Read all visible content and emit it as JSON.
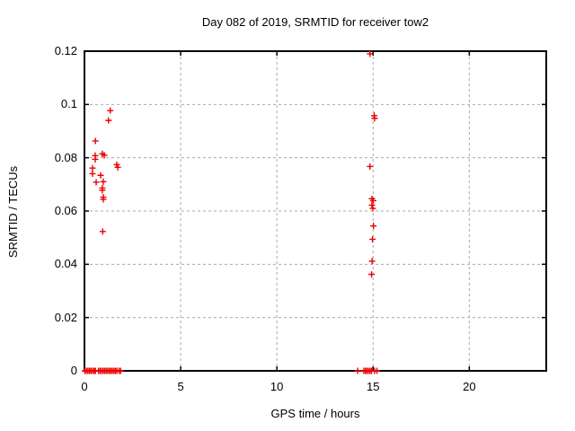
{
  "chart_data": {
    "type": "scatter",
    "title": "Day 082 of 2019, SRMTID for receiver tow2",
    "xlabel": "GPS time / hours",
    "ylabel": "SRMTID / TECUs",
    "xlim": [
      0,
      24
    ],
    "ylim": [
      0,
      0.12
    ],
    "xticks": {
      "values": [
        0,
        5,
        10,
        15,
        20
      ],
      "labels": [
        "0",
        "5",
        "10",
        "15",
        "20"
      ]
    },
    "yticks": {
      "values": [
        0,
        0.02,
        0.04,
        0.06,
        0.08,
        0.1,
        0.12
      ],
      "labels": [
        "0",
        "0.02",
        "0.04",
        "0.06",
        "0.08",
        "0.1",
        "0.12"
      ]
    },
    "grid": true,
    "grid_style": "dashed",
    "grid_color": "#aaaaaa",
    "border_color": "#000000",
    "legend_position": "none",
    "marker": {
      "shape": "plus",
      "color": "#ee0000",
      "size": 7
    },
    "series": [
      {
        "name": "SRMTID",
        "points": [
          [
            0.42,
            0.0761
          ],
          [
            0.42,
            0.074
          ],
          [
            0.56,
            0.0808
          ],
          [
            0.56,
            0.0794
          ],
          [
            0.57,
            0.0863
          ],
          [
            0.61,
            0.0708
          ],
          [
            0.84,
            0.0734
          ],
          [
            0.93,
            0.0815
          ],
          [
            0.93,
            0.0686
          ],
          [
            0.93,
            0.0678
          ],
          [
            0.95,
            0.0523
          ],
          [
            0.98,
            0.071
          ],
          [
            0.98,
            0.0652
          ],
          [
            0.98,
            0.0644
          ],
          [
            1.03,
            0.0809
          ],
          [
            1.25,
            0.094
          ],
          [
            1.34,
            0.0977
          ],
          [
            1.68,
            0.0774
          ],
          [
            1.73,
            0.0764
          ],
          [
            14.84,
            0.119
          ],
          [
            15.06,
            0.0958
          ],
          [
            15.08,
            0.0948
          ],
          [
            14.84,
            0.0767
          ],
          [
            14.94,
            0.0646
          ],
          [
            15.01,
            0.0639
          ],
          [
            14.94,
            0.0622
          ],
          [
            14.99,
            0.061
          ],
          [
            15.02,
            0.0544
          ],
          [
            14.97,
            0.0494
          ],
          [
            14.95,
            0.0412
          ],
          [
            14.92,
            0.0362
          ],
          [
            0.02,
            0
          ],
          [
            0.1,
            0
          ],
          [
            0.18,
            0
          ],
          [
            0.26,
            0
          ],
          [
            0.34,
            0
          ],
          [
            0.42,
            0
          ],
          [
            0.5,
            0
          ],
          [
            0.57,
            0
          ],
          [
            0.73,
            0
          ],
          [
            0.81,
            0
          ],
          [
            0.89,
            0
          ],
          [
            0.97,
            0
          ],
          [
            1.05,
            0
          ],
          [
            1.13,
            0
          ],
          [
            1.21,
            0
          ],
          [
            1.29,
            0
          ],
          [
            1.37,
            0
          ],
          [
            1.45,
            0
          ],
          [
            1.53,
            0
          ],
          [
            1.61,
            0
          ],
          [
            1.69,
            0
          ],
          [
            1.8,
            0
          ],
          [
            1.88,
            0
          ],
          [
            14.2,
            0
          ],
          [
            14.52,
            0
          ],
          [
            14.6,
            0
          ],
          [
            14.68,
            0
          ],
          [
            14.76,
            0
          ],
          [
            14.84,
            0
          ],
          [
            14.92,
            0
          ],
          [
            15.08,
            0
          ],
          [
            15.2,
            0
          ]
        ]
      }
    ]
  }
}
